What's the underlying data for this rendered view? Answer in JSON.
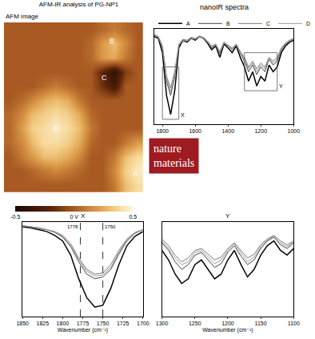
{
  "title": "AFM-IR analysis of PG-NP1",
  "logo": [
    "nature",
    "materials"
  ],
  "chart_data": [
    {
      "type": "heatmap",
      "title": "AFM image",
      "cells": [
        [
          0,
          0,
          0,
          0,
          0,
          0,
          0,
          0,
          0.05,
          0.1,
          0.05,
          0
        ],
        [
          0,
          0,
          0,
          0,
          0,
          0,
          0,
          0.05,
          0.2,
          0.3,
          0.15,
          0
        ],
        [
          0,
          0,
          0,
          0,
          0,
          0,
          0,
          0.05,
          0.2,
          0.25,
          0.1,
          0
        ],
        [
          0,
          0,
          0,
          0,
          0,
          0,
          0,
          0,
          -0.2,
          -0.4,
          -0.1,
          0
        ],
        [
          0,
          0,
          0,
          0.05,
          0.1,
          0.05,
          0,
          0,
          -0.15,
          -0.3,
          0,
          0
        ],
        [
          0,
          0.05,
          0.15,
          0.25,
          0.3,
          0.25,
          0.1,
          0,
          0,
          0,
          0,
          0
        ],
        [
          0.05,
          0.15,
          0.3,
          0.35,
          0.4,
          0.35,
          0.25,
          0.05,
          0,
          0,
          0,
          0
        ],
        [
          0.05,
          0.2,
          0.35,
          0.4,
          0.45,
          0.4,
          0.3,
          0.1,
          0,
          0,
          0,
          0
        ],
        [
          0.05,
          0.15,
          0.3,
          0.4,
          0.4,
          0.35,
          0.25,
          0.05,
          0,
          0,
          0.1,
          0.2
        ],
        [
          0,
          0.1,
          0.2,
          0.3,
          0.3,
          0.25,
          0.15,
          0,
          0,
          0.1,
          0.3,
          0.4
        ],
        [
          0,
          0,
          0.05,
          0.1,
          0.15,
          0.1,
          0.05,
          0,
          0,
          0.15,
          0.35,
          0.45
        ],
        [
          0,
          0,
          0,
          0,
          0,
          0,
          0,
          0,
          0,
          0.1,
          0.3,
          0.4
        ]
      ],
      "points": [
        {
          "label": "A",
          "x": 10.8,
          "y": 10.2
        },
        {
          "label": "B",
          "x": 8.8,
          "y": 0.8
        },
        {
          "label": "C",
          "x": 8.2,
          "y": 3.4
        },
        {
          "label": "D",
          "x": 4,
          "y": 7
        }
      ],
      "colorbar": {
        "range": [
          -0.5,
          0.5
        ],
        "ticks": [
          -0.5,
          {
            "value": 0,
            "label": "0 V"
          },
          0.5
        ]
      },
      "tick_labels": false
    },
    {
      "type": "line",
      "title": "nanoIR spectra",
      "legend": "top",
      "grid": false,
      "tick_labels": "x",
      "x": [
        1850,
        1825,
        1800,
        1775,
        1750,
        1725,
        1700,
        1675,
        1650,
        1625,
        1600,
        1575,
        1550,
        1525,
        1500,
        1475,
        1450,
        1425,
        1400,
        1375,
        1350,
        1325,
        1300,
        1275,
        1250,
        1225,
        1200,
        1175,
        1150,
        1125,
        1100,
        1075,
        1050,
        1025,
        1000
      ],
      "xlim": [
        1850,
        1000
      ],
      "xticks": [
        1800,
        1600,
        1400,
        1200,
        1000
      ],
      "ylim": [
        0,
        1
      ],
      "series": [
        {
          "name": "A",
          "color": "#000000",
          "line_style": "solid",
          "values": [
            0.92,
            0.9,
            0.75,
            0.3,
            0.1,
            0.35,
            0.8,
            0.88,
            0.86,
            0.9,
            0.88,
            0.92,
            0.9,
            0.85,
            0.78,
            0.82,
            0.7,
            0.84,
            0.8,
            0.75,
            0.82,
            0.7,
            0.6,
            0.45,
            0.55,
            0.4,
            0.5,
            0.45,
            0.62,
            0.55,
            0.6,
            0.75,
            0.82,
            0.86,
            0.88
          ]
        },
        {
          "name": "B",
          "color": "#444444",
          "line_style": "solid",
          "values": [
            0.93,
            0.91,
            0.8,
            0.45,
            0.3,
            0.5,
            0.82,
            0.88,
            0.87,
            0.9,
            0.89,
            0.92,
            0.9,
            0.86,
            0.8,
            0.83,
            0.74,
            0.85,
            0.82,
            0.78,
            0.83,
            0.74,
            0.66,
            0.55,
            0.62,
            0.52,
            0.6,
            0.55,
            0.68,
            0.62,
            0.66,
            0.78,
            0.84,
            0.87,
            0.89
          ]
        },
        {
          "name": "C",
          "color": "#777777",
          "line_style": "solid",
          "values": [
            0.94,
            0.92,
            0.82,
            0.5,
            0.38,
            0.55,
            0.84,
            0.89,
            0.88,
            0.91,
            0.9,
            0.92,
            0.91,
            0.87,
            0.82,
            0.84,
            0.76,
            0.86,
            0.83,
            0.8,
            0.84,
            0.76,
            0.7,
            0.6,
            0.66,
            0.58,
            0.64,
            0.6,
            0.7,
            0.66,
            0.7,
            0.8,
            0.85,
            0.88,
            0.9
          ]
        },
        {
          "name": "D",
          "color": "#999999",
          "line_style": "solid",
          "values": [
            0.93,
            0.91,
            0.81,
            0.48,
            0.34,
            0.52,
            0.83,
            0.88,
            0.87,
            0.9,
            0.89,
            0.92,
            0.9,
            0.86,
            0.81,
            0.83,
            0.75,
            0.85,
            0.82,
            0.79,
            0.83,
            0.75,
            0.68,
            0.58,
            0.64,
            0.55,
            0.62,
            0.58,
            0.69,
            0.64,
            0.68,
            0.79,
            0.84,
            0.87,
            0.89
          ]
        }
      ],
      "regions": [
        {
          "label": "X",
          "x0": 1800,
          "x1": 1700,
          "y0": 0.05,
          "y1": 0.6
        },
        {
          "label": "Y",
          "x0": 1300,
          "x1": 1100,
          "y0": 0.35,
          "y1": 0.75
        }
      ]
    },
    {
      "type": "line",
      "title": "X",
      "x_label": "Wavenumber (cm⁻¹)",
      "grid": false,
      "tick_labels": "x",
      "x": [
        1850,
        1840,
        1830,
        1820,
        1810,
        1800,
        1790,
        1780,
        1770,
        1760,
        1750,
        1740,
        1730,
        1720,
        1710,
        1700
      ],
      "xlim": [
        1850,
        1700
      ],
      "xticks": [
        1850,
        1825,
        1800,
        1775,
        1750,
        1725,
        1700
      ],
      "ylim": [
        0,
        1
      ],
      "reference_lines": [
        1778,
        1750
      ],
      "series": [
        {
          "color": "#000000",
          "line_style": "solid",
          "values": [
            0.95,
            0.94,
            0.92,
            0.9,
            0.86,
            0.8,
            0.65,
            0.4,
            0.2,
            0.1,
            0.12,
            0.3,
            0.55,
            0.75,
            0.85,
            0.9
          ]
        },
        {
          "color": "#444444",
          "line_style": "solid",
          "values": [
            0.96,
            0.95,
            0.93,
            0.92,
            0.89,
            0.84,
            0.74,
            0.58,
            0.45,
            0.4,
            0.42,
            0.5,
            0.66,
            0.8,
            0.88,
            0.92
          ]
        },
        {
          "color": "#777777",
          "line_style": "solid",
          "values": [
            0.96,
            0.95,
            0.94,
            0.92,
            0.9,
            0.86,
            0.77,
            0.62,
            0.5,
            0.45,
            0.46,
            0.55,
            0.7,
            0.82,
            0.89,
            0.92
          ]
        },
        {
          "color": "#999999",
          "line_style": "solid",
          "values": [
            0.96,
            0.95,
            0.93,
            0.92,
            0.89,
            0.85,
            0.75,
            0.6,
            0.48,
            0.43,
            0.44,
            0.52,
            0.68,
            0.81,
            0.88,
            0.92
          ]
        }
      ]
    },
    {
      "type": "line",
      "title": "Y",
      "x_label": "Wavenumber (cm⁻¹)",
      "grid": false,
      "tick_labels": "x",
      "x": [
        1300,
        1290,
        1280,
        1270,
        1260,
        1250,
        1240,
        1230,
        1220,
        1210,
        1200,
        1190,
        1180,
        1170,
        1160,
        1150,
        1140,
        1130,
        1120,
        1110,
        1100
      ],
      "xlim": [
        1300,
        1100
      ],
      "xticks": [
        1300,
        1250,
        1200,
        1150,
        1100
      ],
      "ylim": [
        0,
        1
      ],
      "series": [
        {
          "color": "#000000",
          "line_style": "solid",
          "values": [
            0.7,
            0.6,
            0.45,
            0.35,
            0.4,
            0.55,
            0.6,
            0.5,
            0.4,
            0.45,
            0.6,
            0.7,
            0.55,
            0.42,
            0.5,
            0.65,
            0.75,
            0.8,
            0.7,
            0.65,
            0.72
          ]
        },
        {
          "color": "#444444",
          "line_style": "solid",
          "values": [
            0.78,
            0.7,
            0.58,
            0.5,
            0.55,
            0.65,
            0.68,
            0.6,
            0.52,
            0.56,
            0.68,
            0.75,
            0.64,
            0.55,
            0.6,
            0.72,
            0.8,
            0.84,
            0.76,
            0.72,
            0.78
          ]
        },
        {
          "color": "#777777",
          "line_style": "solid",
          "values": [
            0.82,
            0.75,
            0.65,
            0.58,
            0.62,
            0.7,
            0.72,
            0.66,
            0.6,
            0.63,
            0.72,
            0.78,
            0.7,
            0.62,
            0.66,
            0.76,
            0.82,
            0.86,
            0.8,
            0.76,
            0.8
          ]
        },
        {
          "color": "#999999",
          "line_style": "solid",
          "values": [
            0.8,
            0.72,
            0.62,
            0.55,
            0.58,
            0.68,
            0.7,
            0.63,
            0.56,
            0.6,
            0.7,
            0.77,
            0.67,
            0.58,
            0.63,
            0.74,
            0.81,
            0.85,
            0.78,
            0.74,
            0.79
          ]
        }
      ]
    }
  ]
}
